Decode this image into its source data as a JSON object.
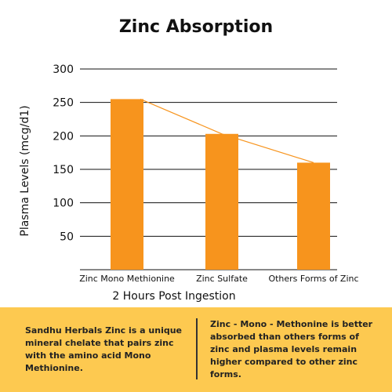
{
  "colors": {
    "bar": "#f7941d",
    "trend_line": "#f7941d",
    "panel_background": "#fdc950",
    "divider": "#333333",
    "axis": "#111111",
    "grid": "#111111"
  },
  "chart_data": {
    "type": "bar",
    "title": "Zinc Absorption",
    "xlabel": "2 Hours Post Ingestion",
    "ylabel": "Plasma Levels (mcg/d1)",
    "categories": [
      "Zinc Mono Methionine",
      "Zinc Sulfate",
      "Others Forms of Zinc"
    ],
    "values": [
      255,
      203,
      160
    ],
    "ylim": [
      0,
      300
    ],
    "yticks": [
      50,
      100,
      150,
      200,
      250,
      300
    ],
    "grid": true,
    "trend_line": true
  },
  "info": {
    "left_text": "Sandhu Herbals Zinc is a unique mineral chelate that pairs zinc with the amino acid Mono Methionine.",
    "right_text": "Zinc - Mono - Methonine is better absorbed than others forms of zinc and plasma levels remain higher compared to other zinc forms."
  }
}
